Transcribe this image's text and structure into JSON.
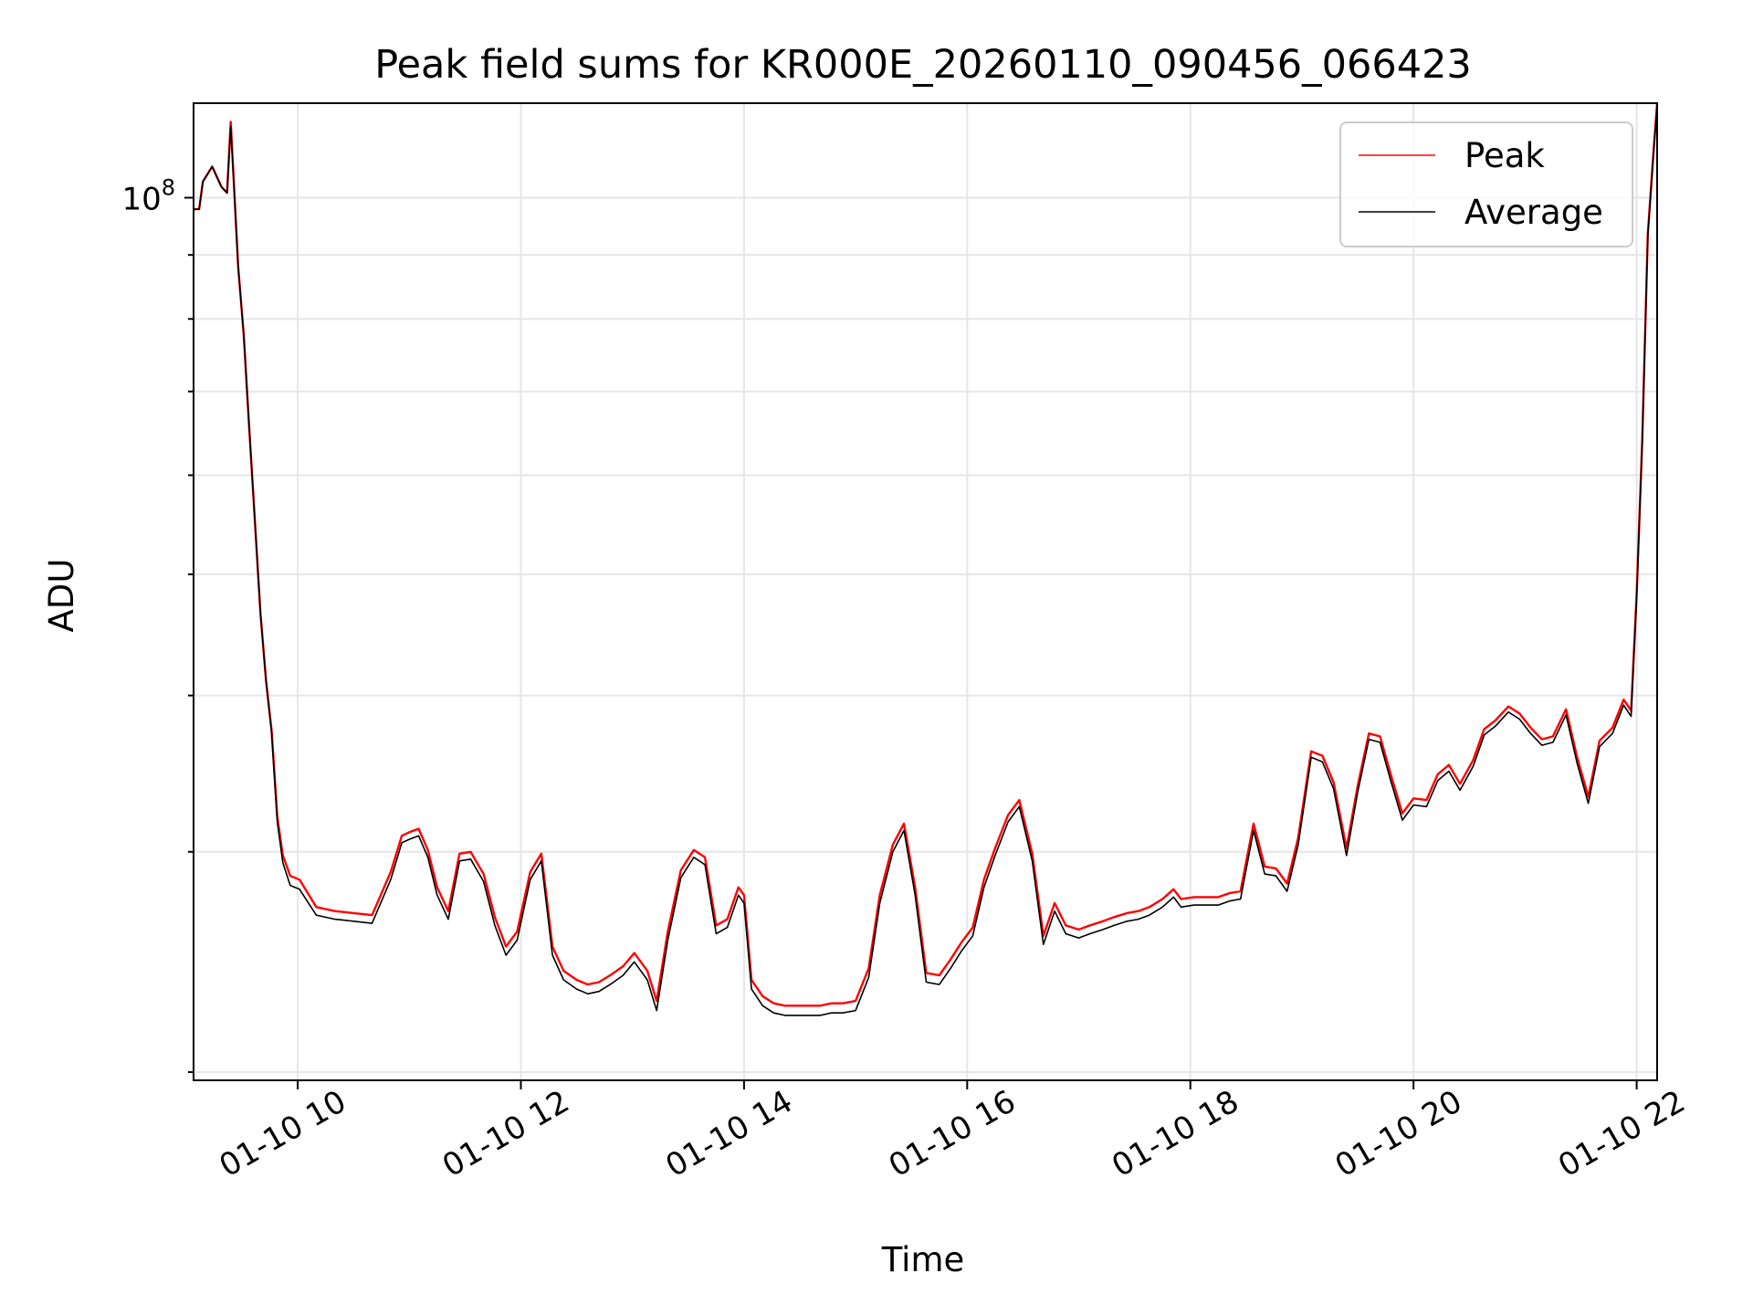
{
  "chart_data": {
    "type": "line",
    "title": "Peak field sums for KR000E_20260110_090456_066423",
    "xlabel": "Time",
    "ylabel": "ADU",
    "y_scale": "log",
    "grid": true,
    "legend_position": "top-right",
    "x_range": [
      "2026-01-10 09:04",
      "2026-01-10 22:11"
    ],
    "y_range": [
      19700000,
      119000000
    ],
    "x_tick_labels": [
      "01-10 10",
      "01-10 12",
      "01-10 14",
      "01-10 16",
      "01-10 18",
      "01-10 20",
      "01-10 22"
    ],
    "x_tick_values": [
      "2026-01-10 10:00",
      "2026-01-10 12:00",
      "2026-01-10 14:00",
      "2026-01-10 16:00",
      "2026-01-10 18:00",
      "2026-01-10 20:00",
      "2026-01-10 22:00"
    ],
    "y_tick_label": {
      "base": "10",
      "exponent": "8",
      "value": 100000000
    },
    "series": [
      {
        "name": "Peak",
        "color": "#ff0000",
        "points": [
          [
            "09:04",
            97900000
          ],
          [
            "09:07",
            97900000
          ],
          [
            "09:09",
            103000000
          ],
          [
            "09:14",
            105900000
          ],
          [
            "09:19",
            102000000
          ],
          [
            "09:22",
            100900000
          ],
          [
            "09:24",
            115000000
          ],
          [
            "09:28",
            88000000
          ],
          [
            "09:31",
            77600000
          ],
          [
            "09:34",
            65200000
          ],
          [
            "09:37",
            55100000
          ],
          [
            "09:40",
            46500000
          ],
          [
            "09:43",
            41100000
          ],
          [
            "09:46",
            37500000
          ],
          [
            "09:49",
            32000000
          ],
          [
            "09:52",
            29800000
          ],
          [
            "09:56",
            28700000
          ],
          [
            "10:01",
            28500000
          ],
          [
            "10:10",
            27100000
          ],
          [
            "10:20",
            26900000
          ],
          [
            "10:30",
            26800000
          ],
          [
            "10:40",
            26700000
          ],
          [
            "10:50",
            28900000
          ],
          [
            "10:56",
            30900000
          ],
          [
            "11:00",
            31100000
          ],
          [
            "11:05",
            31300000
          ],
          [
            "11:10",
            30100000
          ],
          [
            "11:15",
            28100000
          ],
          [
            "11:21",
            26900000
          ],
          [
            "11:27",
            29900000
          ],
          [
            "11:33",
            30000000
          ],
          [
            "11:40",
            28800000
          ],
          [
            "11:46",
            26600000
          ],
          [
            "11:52",
            25200000
          ],
          [
            "11:58",
            25900000
          ],
          [
            "12:05",
            28900000
          ],
          [
            "12:11",
            29900000
          ],
          [
            "12:17",
            25200000
          ],
          [
            "12:23",
            24100000
          ],
          [
            "12:30",
            23700000
          ],
          [
            "12:36",
            23500000
          ],
          [
            "12:42",
            23600000
          ],
          [
            "12:48",
            23900000
          ],
          [
            "12:55",
            24300000
          ],
          [
            "13:01",
            24900000
          ],
          [
            "13:08",
            24100000
          ],
          [
            "13:13",
            22800000
          ],
          [
            "13:19",
            25900000
          ],
          [
            "13:26",
            29000000
          ],
          [
            "13:33",
            30100000
          ],
          [
            "13:39",
            29700000
          ],
          [
            "13:45",
            26200000
          ],
          [
            "13:51",
            26500000
          ],
          [
            "13:57",
            28100000
          ],
          [
            "14:00",
            27700000
          ],
          [
            "14:04",
            23700000
          ],
          [
            "14:10",
            23000000
          ],
          [
            "14:16",
            22700000
          ],
          [
            "14:22",
            22600000
          ],
          [
            "14:29",
            22600000
          ],
          [
            "14:35",
            22600000
          ],
          [
            "14:41",
            22600000
          ],
          [
            "14:47",
            22700000
          ],
          [
            "14:53",
            22700000
          ],
          [
            "15:00",
            22800000
          ],
          [
            "15:07",
            24200000
          ],
          [
            "15:13",
            27700000
          ],
          [
            "15:20",
            30400000
          ],
          [
            "15:26",
            31600000
          ],
          [
            "15:32",
            28100000
          ],
          [
            "15:38",
            24000000
          ],
          [
            "15:45",
            23900000
          ],
          [
            "15:51",
            24600000
          ],
          [
            "15:57",
            25400000
          ],
          [
            "16:03",
            26100000
          ],
          [
            "16:09",
            28500000
          ],
          [
            "16:15",
            30200000
          ],
          [
            "16:22",
            32100000
          ],
          [
            "16:28",
            33000000
          ],
          [
            "16:35",
            29900000
          ],
          [
            "16:41",
            25700000
          ],
          [
            "16:47",
            27300000
          ],
          [
            "16:53",
            26200000
          ],
          [
            "17:00",
            26000000
          ],
          [
            "17:06",
            26200000
          ],
          [
            "17:13",
            26400000
          ],
          [
            "17:19",
            26600000
          ],
          [
            "17:26",
            26800000
          ],
          [
            "17:32",
            26900000
          ],
          [
            "17:38",
            27100000
          ],
          [
            "17:45",
            27500000
          ],
          [
            "17:51",
            28000000
          ],
          [
            "17:55",
            27500000
          ],
          [
            "18:02",
            27600000
          ],
          [
            "18:08",
            27600000
          ],
          [
            "18:15",
            27600000
          ],
          [
            "18:21",
            27800000
          ],
          [
            "18:27",
            27900000
          ],
          [
            "18:34",
            31600000
          ],
          [
            "18:40",
            29200000
          ],
          [
            "18:46",
            29100000
          ],
          [
            "18:52",
            28300000
          ],
          [
            "18:58",
            30800000
          ],
          [
            "19:05",
            36100000
          ],
          [
            "19:11",
            35800000
          ],
          [
            "19:17",
            34100000
          ],
          [
            "19:24",
            30200000
          ],
          [
            "19:30",
            33900000
          ],
          [
            "19:36",
            37300000
          ],
          [
            "19:42",
            37100000
          ],
          [
            "19:48",
            34500000
          ],
          [
            "19:54",
            32200000
          ],
          [
            "20:00",
            33100000
          ],
          [
            "20:07",
            33000000
          ],
          [
            "20:13",
            34600000
          ],
          [
            "20:19",
            35200000
          ],
          [
            "20:25",
            34000000
          ],
          [
            "20:32",
            35500000
          ],
          [
            "20:38",
            37600000
          ],
          [
            "20:44",
            38200000
          ],
          [
            "20:51",
            39200000
          ],
          [
            "20:57",
            38700000
          ],
          [
            "21:03",
            37700000
          ],
          [
            "21:09",
            36900000
          ],
          [
            "21:15",
            37100000
          ],
          [
            "21:22",
            39000000
          ],
          [
            "21:28",
            35700000
          ],
          [
            "21:34",
            33200000
          ],
          [
            "21:40",
            36800000
          ],
          [
            "21:47",
            37700000
          ],
          [
            "21:53",
            39700000
          ],
          [
            "21:57",
            38900000
          ],
          [
            "22:00",
            48300000
          ],
          [
            "22:03",
            64100000
          ],
          [
            "22:06",
            93600000
          ],
          [
            "22:09",
            108500000
          ],
          [
            "22:11",
            119000000
          ]
        ]
      },
      {
        "name": "Average",
        "color": "#000000",
        "points": [
          [
            "09:04",
            97900000
          ],
          [
            "09:07",
            97900000
          ],
          [
            "09:09",
            103000000
          ],
          [
            "09:14",
            105900000
          ],
          [
            "09:19",
            102000000
          ],
          [
            "09:22",
            100900000
          ],
          [
            "09:24",
            114000000
          ],
          [
            "09:28",
            88000000
          ],
          [
            "09:31",
            77600000
          ],
          [
            "09:34",
            65200000
          ],
          [
            "09:37",
            55100000
          ],
          [
            "09:40",
            46500000
          ],
          [
            "09:43",
            41100000
          ],
          [
            "09:46",
            37300000
          ],
          [
            "09:49",
            31700000
          ],
          [
            "09:52",
            29400000
          ],
          [
            "09:56",
            28200000
          ],
          [
            "10:01",
            28000000
          ],
          [
            "10:10",
            26700000
          ],
          [
            "10:20",
            26500000
          ],
          [
            "10:30",
            26400000
          ],
          [
            "10:40",
            26300000
          ],
          [
            "10:50",
            28500000
          ],
          [
            "10:56",
            30500000
          ],
          [
            "11:00",
            30700000
          ],
          [
            "11:05",
            30900000
          ],
          [
            "11:10",
            29700000
          ],
          [
            "11:15",
            27700000
          ],
          [
            "11:21",
            26500000
          ],
          [
            "11:27",
            29500000
          ],
          [
            "11:33",
            29600000
          ],
          [
            "11:40",
            28400000
          ],
          [
            "11:46",
            26200000
          ],
          [
            "11:52",
            24800000
          ],
          [
            "11:58",
            25500000
          ],
          [
            "12:05",
            28500000
          ],
          [
            "12:11",
            29500000
          ],
          [
            "12:17",
            24800000
          ],
          [
            "12:23",
            23700000
          ],
          [
            "12:30",
            23300000
          ],
          [
            "12:36",
            23100000
          ],
          [
            "12:42",
            23200000
          ],
          [
            "12:48",
            23500000
          ],
          [
            "12:55",
            23900000
          ],
          [
            "13:01",
            24500000
          ],
          [
            "13:08",
            23700000
          ],
          [
            "13:13",
            22400000
          ],
          [
            "13:19",
            25500000
          ],
          [
            "13:26",
            28600000
          ],
          [
            "13:33",
            29700000
          ],
          [
            "13:39",
            29300000
          ],
          [
            "13:45",
            25800000
          ],
          [
            "13:51",
            26100000
          ],
          [
            "13:57",
            27700000
          ],
          [
            "14:00",
            27300000
          ],
          [
            "14:04",
            23300000
          ],
          [
            "14:10",
            22600000
          ],
          [
            "14:16",
            22300000
          ],
          [
            "14:22",
            22200000
          ],
          [
            "14:29",
            22200000
          ],
          [
            "14:35",
            22200000
          ],
          [
            "14:41",
            22200000
          ],
          [
            "14:47",
            22300000
          ],
          [
            "14:53",
            22300000
          ],
          [
            "15:00",
            22400000
          ],
          [
            "15:07",
            23800000
          ],
          [
            "15:13",
            27300000
          ],
          [
            "15:20",
            30000000
          ],
          [
            "15:26",
            31200000
          ],
          [
            "15:32",
            27700000
          ],
          [
            "15:38",
            23600000
          ],
          [
            "15:45",
            23500000
          ],
          [
            "15:51",
            24200000
          ],
          [
            "15:57",
            25000000
          ],
          [
            "16:03",
            25700000
          ],
          [
            "16:09",
            28100000
          ],
          [
            "16:15",
            29800000
          ],
          [
            "16:22",
            31700000
          ],
          [
            "16:28",
            32600000
          ],
          [
            "16:35",
            29500000
          ],
          [
            "16:41",
            25300000
          ],
          [
            "16:47",
            26900000
          ],
          [
            "16:53",
            25800000
          ],
          [
            "17:00",
            25600000
          ],
          [
            "17:06",
            25800000
          ],
          [
            "17:13",
            26000000
          ],
          [
            "17:19",
            26200000
          ],
          [
            "17:26",
            26400000
          ],
          [
            "17:32",
            26500000
          ],
          [
            "17:38",
            26700000
          ],
          [
            "17:45",
            27100000
          ],
          [
            "17:51",
            27600000
          ],
          [
            "17:55",
            27100000
          ],
          [
            "18:02",
            27200000
          ],
          [
            "18:08",
            27200000
          ],
          [
            "18:15",
            27200000
          ],
          [
            "18:21",
            27400000
          ],
          [
            "18:27",
            27500000
          ],
          [
            "18:34",
            31200000
          ],
          [
            "18:40",
            28800000
          ],
          [
            "18:46",
            28700000
          ],
          [
            "18:52",
            27900000
          ],
          [
            "18:58",
            30400000
          ],
          [
            "19:05",
            35700000
          ],
          [
            "19:11",
            35400000
          ],
          [
            "19:17",
            33700000
          ],
          [
            "19:24",
            29800000
          ],
          [
            "19:30",
            33500000
          ],
          [
            "19:36",
            36900000
          ],
          [
            "19:42",
            36700000
          ],
          [
            "19:48",
            34100000
          ],
          [
            "19:54",
            31800000
          ],
          [
            "20:00",
            32700000
          ],
          [
            "20:07",
            32600000
          ],
          [
            "20:13",
            34200000
          ],
          [
            "20:19",
            34800000
          ],
          [
            "20:25",
            33600000
          ],
          [
            "20:32",
            35100000
          ],
          [
            "20:38",
            37200000
          ],
          [
            "20:44",
            37800000
          ],
          [
            "20:51",
            38800000
          ],
          [
            "20:57",
            38300000
          ],
          [
            "21:03",
            37300000
          ],
          [
            "21:09",
            36500000
          ],
          [
            "21:15",
            36700000
          ],
          [
            "21:22",
            38600000
          ],
          [
            "21:28",
            35300000
          ],
          [
            "21:34",
            32800000
          ],
          [
            "21:40",
            36400000
          ],
          [
            "21:47",
            37300000
          ],
          [
            "21:53",
            39300000
          ],
          [
            "21:57",
            38500000
          ],
          [
            "22:00",
            47900000
          ],
          [
            "22:03",
            63700000
          ],
          [
            "22:06",
            93200000
          ],
          [
            "22:09",
            108100000
          ],
          [
            "22:11",
            118600000
          ]
        ]
      }
    ]
  }
}
